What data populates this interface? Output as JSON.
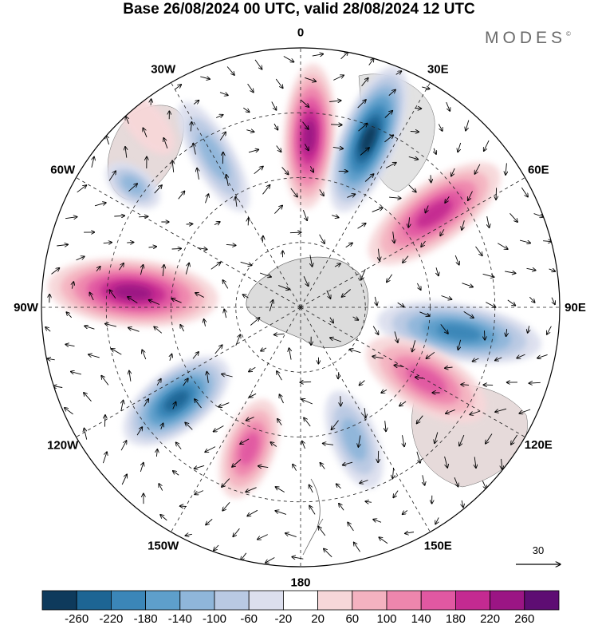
{
  "title": "Base 26/08/2024 00 UTC, valid 28/08/2024 12 UTC",
  "brand": "MODES",
  "brand_mark": "©",
  "longitude_labels": [
    {
      "text": "0",
      "deg": 0
    },
    {
      "text": "30E",
      "deg": 30
    },
    {
      "text": "60E",
      "deg": 60
    },
    {
      "text": "90E",
      "deg": 90
    },
    {
      "text": "120E",
      "deg": 120
    },
    {
      "text": "150E",
      "deg": 150
    },
    {
      "text": "180",
      "deg": 180
    },
    {
      "text": "150W",
      "deg": 210
    },
    {
      "text": "120W",
      "deg": 240
    },
    {
      "text": "90W",
      "deg": 270
    },
    {
      "text": "60W",
      "deg": 300
    },
    {
      "text": "30W",
      "deg": 330
    }
  ],
  "reference_vector": {
    "label": "30"
  },
  "colorbar": {
    "ticks": [
      "-260",
      "-220",
      "-180",
      "-140",
      "-100",
      "-60",
      "-20",
      "20",
      "60",
      "100",
      "140",
      "180",
      "220",
      "260"
    ],
    "colors": [
      "#0e3a5c",
      "#1d6594",
      "#3b86b8",
      "#5e9fcb",
      "#8fb6da",
      "#b9c9e3",
      "#dcdfee",
      "#ffffff",
      "#f7d7d9",
      "#f4b2c0",
      "#ee86ad",
      "#e158a2",
      "#c42a91",
      "#9b1584",
      "#5e0d73"
    ]
  },
  "anomalies": [
    {
      "lon": 3,
      "r": 0.66,
      "rx": 0.1,
      "ry": 0.28,
      "value": 230
    },
    {
      "lon": 22,
      "r": 0.7,
      "rx": 0.11,
      "ry": 0.3,
      "value": -250
    },
    {
      "lon": 55,
      "r": 0.63,
      "rx": 0.12,
      "ry": 0.3,
      "value": 190
    },
    {
      "lon": 99,
      "r": 0.62,
      "rx": 0.11,
      "ry": 0.32,
      "value": -185
    },
    {
      "lon": 120,
      "r": 0.56,
      "rx": 0.12,
      "ry": 0.26,
      "value": 140
    },
    {
      "lon": 158,
      "r": 0.55,
      "rx": 0.09,
      "ry": 0.2,
      "value": -110
    },
    {
      "lon": 200,
      "r": 0.58,
      "rx": 0.1,
      "ry": 0.2,
      "value": 150
    },
    {
      "lon": 233,
      "r": 0.6,
      "rx": 0.12,
      "ry": 0.24,
      "value": -230
    },
    {
      "lon": 275,
      "r": 0.65,
      "rx": 0.13,
      "ry": 0.33,
      "value": 240
    },
    {
      "lon": 306,
      "r": 0.8,
      "rx": 0.07,
      "ry": 0.12,
      "value": -120
    },
    {
      "lon": 330,
      "r": 0.67,
      "rx": 0.08,
      "ry": 0.24,
      "value": -100
    },
    {
      "lon": 320,
      "r": 0.92,
      "rx": 0.07,
      "ry": 0.14,
      "value": 40
    }
  ]
}
